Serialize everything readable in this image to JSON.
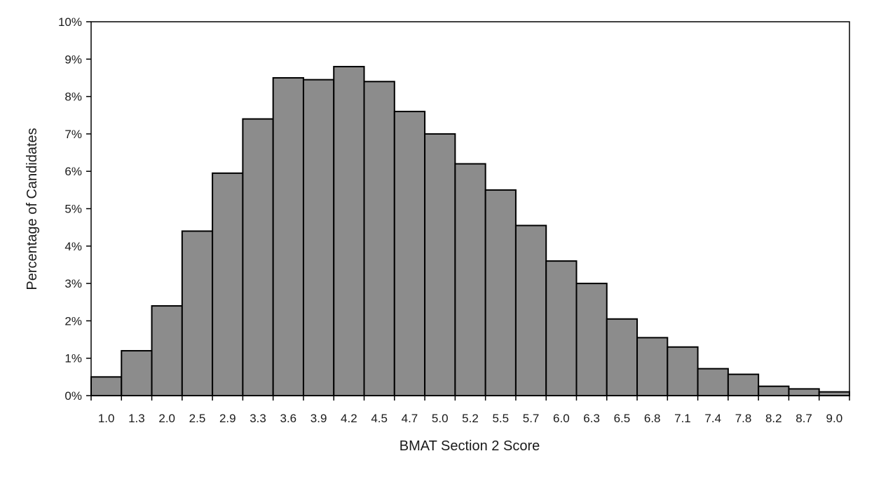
{
  "chart_data": {
    "type": "bar",
    "title": "",
    "xlabel": "BMAT Section 2 Score",
    "ylabel": "Percentage of Candidates",
    "ylim": [
      0,
      10
    ],
    "y_ticks": [
      "0%",
      "1%",
      "2%",
      "3%",
      "4%",
      "5%",
      "6%",
      "7%",
      "8%",
      "9%",
      "10%"
    ],
    "y_tick_values": [
      0,
      1,
      2,
      3,
      4,
      5,
      6,
      7,
      8,
      9,
      10
    ],
    "grid": false,
    "legend": "none",
    "bar_color": "#8c8c8c",
    "bar_edge_color": "#000000",
    "categories": [
      "1.0",
      "1.3",
      "2.0",
      "2.5",
      "2.9",
      "3.3",
      "3.6",
      "3.9",
      "4.2",
      "4.5",
      "4.7",
      "5.0",
      "5.2",
      "5.5",
      "5.7",
      "6.0",
      "6.3",
      "6.5",
      "6.8",
      "7.1",
      "7.4",
      "7.8",
      "8.2",
      "8.7",
      "9.0"
    ],
    "values": [
      0.5,
      1.2,
      2.4,
      4.4,
      5.95,
      7.4,
      8.5,
      8.45,
      8.8,
      8.4,
      7.6,
      7.0,
      6.2,
      5.5,
      4.55,
      3.6,
      3.0,
      2.05,
      1.55,
      1.3,
      0.72,
      0.57,
      0.25,
      0.18,
      0.1
    ]
  }
}
